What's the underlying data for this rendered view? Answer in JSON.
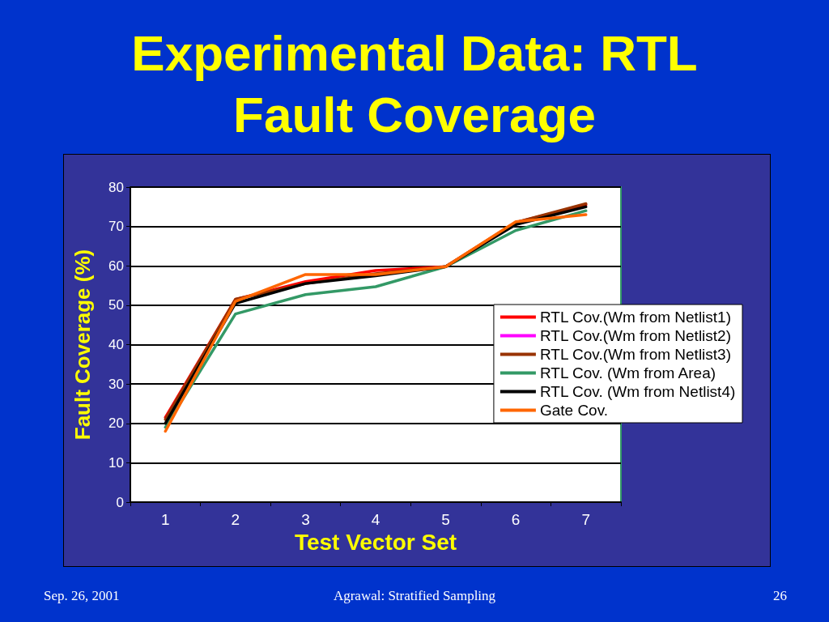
{
  "chart_data": {
    "type": "line",
    "title": "Experimental Data: RTL Fault Coverage",
    "xlabel": "Test Vector Set",
    "ylabel": "Fault Coverage (%)",
    "categories": [
      "1",
      "2",
      "3",
      "4",
      "5",
      "6",
      "7"
    ],
    "series": [
      {
        "name": "RTL Cov.(Wm from Netlist1)",
        "color": "#ff0000",
        "values": [
          21.5,
          51.5,
          56,
          58.8,
          59.8,
          71,
          75.5
        ]
      },
      {
        "name": "RTL Cov.(Wm from Netlist2)",
        "color": "#ff00ff",
        "values": [
          null,
          null,
          null,
          null,
          null,
          null,
          null
        ]
      },
      {
        "name": "RTL Cov.(Wm from Netlist3)",
        "color": "#993300",
        "values": [
          21,
          51.5,
          55.5,
          58,
          59.8,
          71,
          75.8
        ]
      },
      {
        "name": "RTL Cov. (Wm from Area)",
        "color": "#339966",
        "values": [
          19,
          47.8,
          52.7,
          54.7,
          59.8,
          69,
          74
        ]
      },
      {
        "name": "RTL Cov. (Wm from Netlist4)",
        "color": "#000000",
        "values": [
          20,
          50.5,
          55.5,
          57.5,
          59.8,
          70.5,
          75
        ]
      },
      {
        "name": "Gate Cov.",
        "color": "#ff6600",
        "values": [
          18,
          51,
          57.8,
          57.8,
          59.8,
          71.2,
          73
        ]
      }
    ],
    "ylim": [
      0,
      80
    ],
    "yticks": [
      0,
      10,
      20,
      30,
      40,
      50,
      60,
      70,
      80
    ],
    "grid": "y",
    "legend": "right",
    "marker": "none",
    "line_style": "solid",
    "annotations": [
      "Sep. 26, 2001",
      "Agrawal: Stratified Sampling",
      "26"
    ]
  }
}
